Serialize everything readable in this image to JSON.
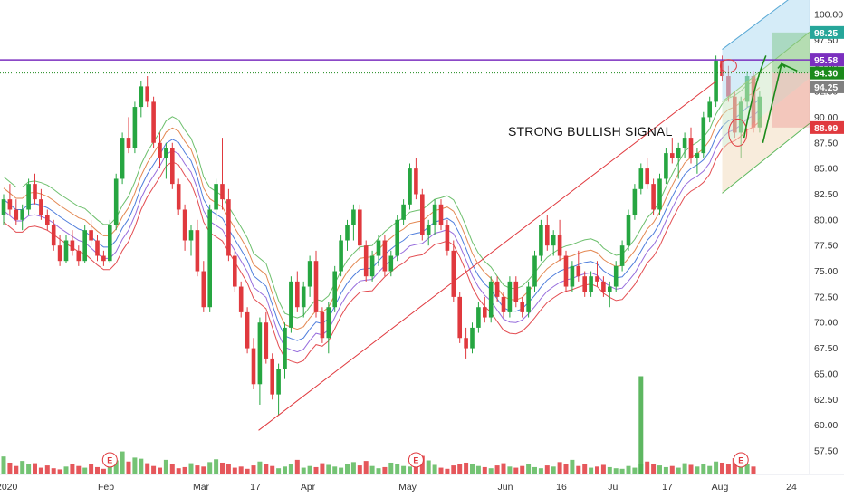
{
  "chart_data": {
    "type": "candlestick",
    "ylim": [
      56,
      101
    ],
    "ylabel": "",
    "xlabel": "",
    "title": "",
    "grid": false,
    "y_ticks": [
      "100.00",
      "97.50",
      "95.00",
      "92.50",
      "90.00",
      "87.50",
      "85.00",
      "82.50",
      "80.00",
      "77.50",
      "75.00",
      "72.50",
      "70.00",
      "67.50",
      "65.00",
      "62.50",
      "60.00",
      "57.50"
    ],
    "x_tick_labels": [
      "2020",
      "Feb",
      "Mar",
      "17",
      "Apr",
      "May",
      "Jun",
      "16",
      "Jul",
      "17",
      "Aug",
      "24"
    ],
    "price_labels": [
      {
        "value": "98.25",
        "color": "#26a69a"
      },
      {
        "value": "95.58",
        "color": "#7b2fbf"
      },
      {
        "value": "94.30",
        "color": "#1b8a1b"
      },
      {
        "value": "94.25",
        "color": "#808080"
      },
      {
        "value": "88.99",
        "color": "#e0393e"
      }
    ],
    "annotation": "STRONG BULLISH SIGNAL",
    "earnings_marker": "E",
    "horizontal_line": 95.58,
    "dotted_line": 94.3,
    "trendline": {
      "from": [
        17,
        59.5
      ],
      "to": [
        114,
        93.5
      ]
    },
    "ohlc_series": [
      [
        80.5,
        82.5,
        79.5,
        82.0
      ],
      [
        82.0,
        83.5,
        80.5,
        81.0
      ],
      [
        81.0,
        82.0,
        79.5,
        80.0
      ],
      [
        80.0,
        81.5,
        79.0,
        81.0
      ],
      [
        81.0,
        84.0,
        80.5,
        83.5
      ],
      [
        83.5,
        84.5,
        81.5,
        82.0
      ],
      [
        82.0,
        83.0,
        80.0,
        80.5
      ],
      [
        80.5,
        81.0,
        79.0,
        79.5
      ],
      [
        79.5,
        80.0,
        77.0,
        77.5
      ],
      [
        77.5,
        78.5,
        75.5,
        76.0
      ],
      [
        76.0,
        78.5,
        75.8,
        78.0
      ],
      [
        78.0,
        79.0,
        76.5,
        77.0
      ],
      [
        77.0,
        77.5,
        75.5,
        76.0
      ],
      [
        76.0,
        79.5,
        75.8,
        79.0
      ],
      [
        79.0,
        80.0,
        77.5,
        78.0
      ],
      [
        78.0,
        78.5,
        76.0,
        76.5
      ],
      [
        76.5,
        77.0,
        75.5,
        76.0
      ],
      [
        76.0,
        80.0,
        75.8,
        79.5
      ],
      [
        79.5,
        84.5,
        79.0,
        84.0
      ],
      [
        84.0,
        88.5,
        83.5,
        88.0
      ],
      [
        88.0,
        90.0,
        86.5,
        87.0
      ],
      [
        87.0,
        91.5,
        86.5,
        91.0
      ],
      [
        91.0,
        93.5,
        90.0,
        93.0
      ],
      [
        93.0,
        94.0,
        91.0,
        91.5
      ],
      [
        91.5,
        92.0,
        87.0,
        87.5
      ],
      [
        87.5,
        88.5,
        85.0,
        86.0
      ],
      [
        86.0,
        87.5,
        84.0,
        87.0
      ],
      [
        87.0,
        87.5,
        83.0,
        83.5
      ],
      [
        83.5,
        84.0,
        80.5,
        81.0
      ],
      [
        81.0,
        81.5,
        77.0,
        78.0
      ],
      [
        78.0,
        79.5,
        76.5,
        79.0
      ],
      [
        79.0,
        80.0,
        74.5,
        75.0
      ],
      [
        75.0,
        76.0,
        71.0,
        71.5
      ],
      [
        71.5,
        81.5,
        71.0,
        81.0
      ],
      [
        81.0,
        84.0,
        80.0,
        83.5
      ],
      [
        83.5,
        88.0,
        81.0,
        82.0
      ],
      [
        82.0,
        83.0,
        76.0,
        76.5
      ],
      [
        76.5,
        77.0,
        73.0,
        73.5
      ],
      [
        73.5,
        74.0,
        70.5,
        71.0
      ],
      [
        71.0,
        71.5,
        67.0,
        67.5
      ],
      [
        67.5,
        68.5,
        63.5,
        64.0
      ],
      [
        64.0,
        70.5,
        62.0,
        70.0
      ],
      [
        70.0,
        71.0,
        66.0,
        66.5
      ],
      [
        66.5,
        67.0,
        62.5,
        63.0
      ],
      [
        63.0,
        66.0,
        61.0,
        65.5
      ],
      [
        65.5,
        70.0,
        64.5,
        69.5
      ],
      [
        69.5,
        74.5,
        69.0,
        74.0
      ],
      [
        74.0,
        75.0,
        71.0,
        71.5
      ],
      [
        71.5,
        74.0,
        70.5,
        73.5
      ],
      [
        73.5,
        76.5,
        72.5,
        76.0
      ],
      [
        76.0,
        77.0,
        70.5,
        71.0
      ],
      [
        71.0,
        71.5,
        68.0,
        68.5
      ],
      [
        68.5,
        72.0,
        67.0,
        71.5
      ],
      [
        71.5,
        75.5,
        71.0,
        75.0
      ],
      [
        75.0,
        78.5,
        74.5,
        78.0
      ],
      [
        78.0,
        80.0,
        77.0,
        79.5
      ],
      [
        79.5,
        81.5,
        78.0,
        81.0
      ],
      [
        81.0,
        81.5,
        77.0,
        77.5
      ],
      [
        77.5,
        78.0,
        74.0,
        74.5
      ],
      [
        74.5,
        77.0,
        74.0,
        76.5
      ],
      [
        76.5,
        78.5,
        75.5,
        78.0
      ],
      [
        78.0,
        78.5,
        74.5,
        75.0
      ],
      [
        75.0,
        77.0,
        74.5,
        76.5
      ],
      [
        76.5,
        80.5,
        76.0,
        80.0
      ],
      [
        80.0,
        82.0,
        79.5,
        81.5
      ],
      [
        81.5,
        85.5,
        81.0,
        85.0
      ],
      [
        85.0,
        86.0,
        82.0,
        82.5
      ],
      [
        82.5,
        83.0,
        78.0,
        78.5
      ],
      [
        78.5,
        80.0,
        77.5,
        79.5
      ],
      [
        79.5,
        82.0,
        78.5,
        81.5
      ],
      [
        81.5,
        82.0,
        79.0,
        79.5
      ],
      [
        79.5,
        80.0,
        76.5,
        77.0
      ],
      [
        77.0,
        78.0,
        72.0,
        72.5
      ],
      [
        72.5,
        73.0,
        68.0,
        68.5
      ],
      [
        68.5,
        69.5,
        66.5,
        67.5
      ],
      [
        67.5,
        70.0,
        67.0,
        69.5
      ],
      [
        69.5,
        72.0,
        69.0,
        71.5
      ],
      [
        71.5,
        72.5,
        70.0,
        70.5
      ],
      [
        70.5,
        74.5,
        70.0,
        74.0
      ],
      [
        74.0,
        74.5,
        72.0,
        72.5
      ],
      [
        72.5,
        73.0,
        70.5,
        71.0
      ],
      [
        71.0,
        74.5,
        70.5,
        74.0
      ],
      [
        74.0,
        74.5,
        71.5,
        72.0
      ],
      [
        72.0,
        72.5,
        70.5,
        71.0
      ],
      [
        71.0,
        74.0,
        70.5,
        73.5
      ],
      [
        73.5,
        77.0,
        73.0,
        76.5
      ],
      [
        76.5,
        80.0,
        76.0,
        79.5
      ],
      [
        79.5,
        80.5,
        77.0,
        77.5
      ],
      [
        77.5,
        79.0,
        76.5,
        78.5
      ],
      [
        78.5,
        80.0,
        76.0,
        76.5
      ],
      [
        76.5,
        77.0,
        73.0,
        73.5
      ],
      [
        73.5,
        76.0,
        73.0,
        75.5
      ],
      [
        75.5,
        77.0,
        74.0,
        74.5
      ],
      [
        74.5,
        75.0,
        72.5,
        73.0
      ],
      [
        73.0,
        75.0,
        72.5,
        74.5
      ],
      [
        74.5,
        76.0,
        73.5,
        74.0
      ],
      [
        74.0,
        74.5,
        72.5,
        73.0
      ],
      [
        73.0,
        74.0,
        71.5,
        73.5
      ],
      [
        73.5,
        76.0,
        73.0,
        75.5
      ],
      [
        75.5,
        78.0,
        75.0,
        77.5
      ],
      [
        77.5,
        81.0,
        77.0,
        80.5
      ],
      [
        80.5,
        83.5,
        80.0,
        83.0
      ],
      [
        83.0,
        85.5,
        82.5,
        85.0
      ],
      [
        85.0,
        86.0,
        83.0,
        83.5
      ],
      [
        83.5,
        84.0,
        80.5,
        81.0
      ],
      [
        81.0,
        84.5,
        80.5,
        84.0
      ],
      [
        84.0,
        87.0,
        83.5,
        86.5
      ],
      [
        86.5,
        88.0,
        85.5,
        86.0
      ],
      [
        86.0,
        87.5,
        84.0,
        87.0
      ],
      [
        87.0,
        88.5,
        86.0,
        88.0
      ],
      [
        88.0,
        89.0,
        85.5,
        86.0
      ],
      [
        86.0,
        87.0,
        84.5,
        86.5
      ],
      [
        86.5,
        90.5,
        86.0,
        90.0
      ],
      [
        90.0,
        92.0,
        89.5,
        91.5
      ],
      [
        91.5,
        96.0,
        91.0,
        95.5
      ],
      [
        95.5,
        96.0,
        93.5,
        94.0
      ],
      [
        94.0,
        95.0,
        91.5,
        92.0
      ],
      [
        92.0,
        92.5,
        88.0,
        88.5
      ],
      [
        88.5,
        92.0,
        86.0,
        91.5
      ],
      [
        91.5,
        94.5,
        91.0,
        94.0
      ],
      [
        94.0,
        94.5,
        88.5,
        89.0
      ],
      [
        89.0,
        92.5,
        88.5,
        92.0
      ]
    ],
    "volume_series": [
      3.2,
      2.1,
      1.5,
      2.4,
      1.8,
      2.0,
      1.2,
      1.6,
      1.1,
      0.9,
      1.4,
      1.8,
      1.5,
      1.2,
      1.9,
      1.3,
      1.0,
      1.7,
      2.5,
      4.1,
      2.3,
      3.0,
      2.8,
      2.0,
      1.5,
      1.2,
      2.6,
      1.8,
      1.1,
      1.3,
      2.0,
      1.6,
      1.4,
      2.2,
      2.7,
      2.1,
      1.8,
      1.2,
      1.4,
      1.0,
      1.6,
      2.3,
      1.9,
      1.5,
      1.1,
      1.4,
      1.8,
      2.6,
      1.2,
      1.5,
      1.3,
      2.0,
      1.7,
      1.4,
      1.2,
      1.9,
      2.2,
      1.6,
      2.4,
      1.5,
      1.1,
      1.3,
      2.1,
      1.8,
      1.5,
      1.4,
      2.0,
      3.3,
      2.5,
      1.7,
      1.2,
      1.0,
      1.6,
      1.9,
      2.1,
      1.8,
      1.5,
      1.3,
      1.1,
      1.6,
      2.0,
      1.4,
      1.2,
      1.5,
      1.8,
      1.3,
      1.1,
      1.6,
      1.4,
      2.2,
      1.9,
      2.6,
      1.5,
      1.8,
      1.2,
      1.4,
      1.7,
      1.3,
      1.1,
      1.0,
      1.5,
      1.2,
      1.9,
      2.3,
      1.8,
      1.6,
      1.3,
      1.5,
      1.2,
      2.0,
      1.7,
      1.4,
      1.8,
      1.5,
      2.3,
      2.1,
      1.8,
      2.9,
      2.4,
      1.9,
      1.4
    ],
    "big_volume_bar": {
      "index": 102,
      "value": 17.5
    }
  }
}
